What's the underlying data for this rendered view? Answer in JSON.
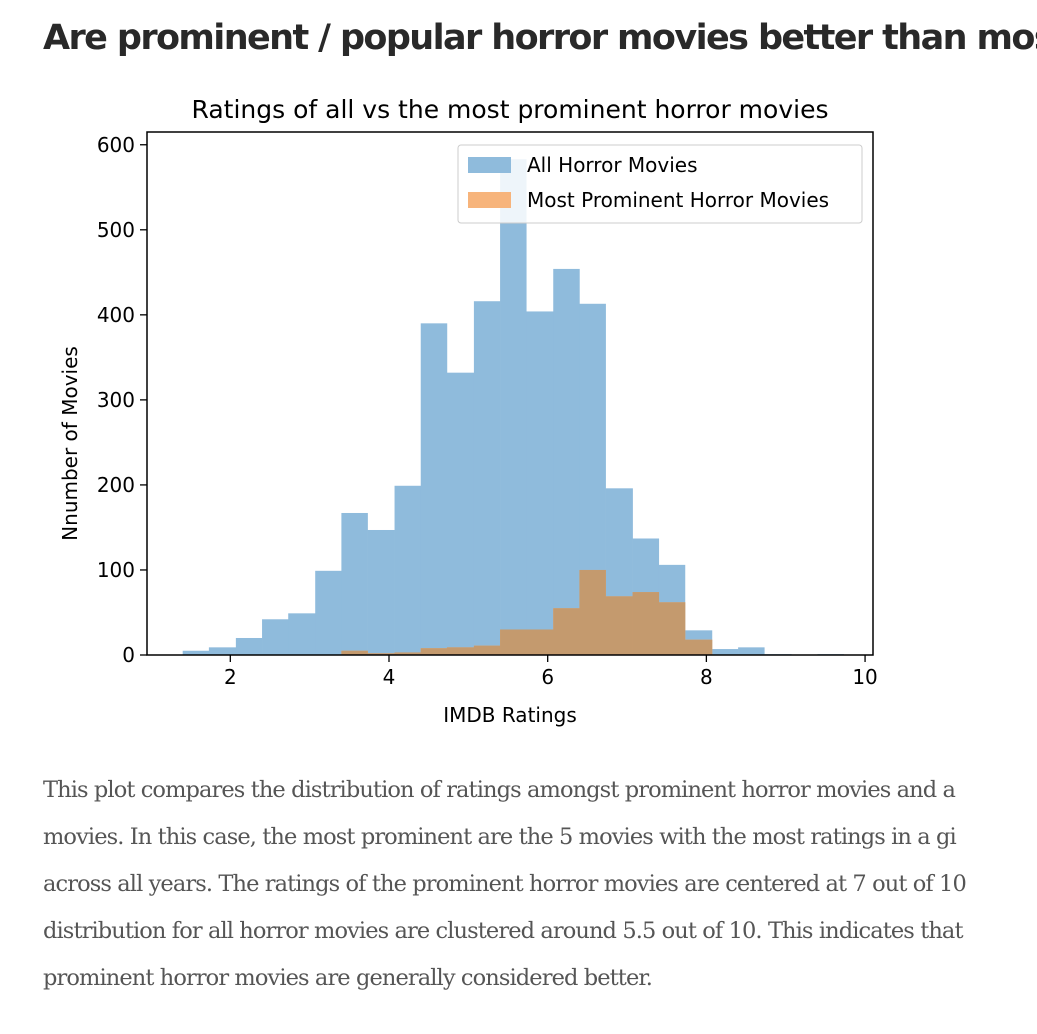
{
  "article": {
    "headline": "Are prominent / popular horror movies better than most?",
    "paragraph_lines": [
      "This plot compares the distribution of ratings amongst prominent horror movies and a",
      "movies. In this case, the most prominent are the 5 movies with the most ratings in a gi",
      "across all years. The ratings of the prominent horror movies are centered at 7 out of 10",
      "distribution for all horror movies are clustered around 5.5 out of 10. This indicates that",
      "prominent horror movies are generally considered better."
    ]
  },
  "chart_data": {
    "type": "bar",
    "title": "Ratings of all vs the most prominent horror movies",
    "xlabel": "IMDB Ratings",
    "ylabel": "Nnumber of Movies",
    "xlim": [
      0.95,
      10.1
    ],
    "ylim": [
      0,
      615
    ],
    "xticks": [
      2,
      4,
      6,
      8,
      10
    ],
    "yticks": [
      0,
      100,
      200,
      300,
      400,
      500,
      600
    ],
    "legend_position": "top-right",
    "colors": {
      "all": "#8fbbdc",
      "prominent": "#f7b47b",
      "overlap": "#c49a6e"
    },
    "series": [
      {
        "name": "All Horror Movies",
        "bin_edges": [
          1.4,
          1.73,
          2.07,
          2.4,
          2.73,
          3.07,
          3.4,
          3.73,
          4.07,
          4.4,
          4.73,
          5.07,
          5.4,
          5.73,
          6.07,
          6.4,
          6.73,
          7.07,
          7.4,
          7.73,
          8.07,
          8.4,
          8.73,
          9.07,
          9.4,
          9.73
        ],
        "values": [
          5,
          9,
          20,
          42,
          49,
          99,
          167,
          147,
          199,
          390,
          332,
          416,
          583,
          404,
          454,
          413,
          196,
          137,
          106,
          29,
          7,
          9,
          1,
          0,
          1
        ]
      },
      {
        "name": "Most Prominent Horror Movies",
        "bin_edges": [
          3.4,
          3.73,
          4.07,
          4.4,
          4.73,
          5.07,
          5.4,
          5.73,
          6.07,
          6.4,
          6.73,
          7.07,
          7.4,
          7.73,
          8.07
        ],
        "values": [
          5,
          2,
          3,
          8,
          9,
          11,
          30,
          30,
          55,
          100,
          69,
          74,
          62,
          18
        ]
      }
    ]
  }
}
